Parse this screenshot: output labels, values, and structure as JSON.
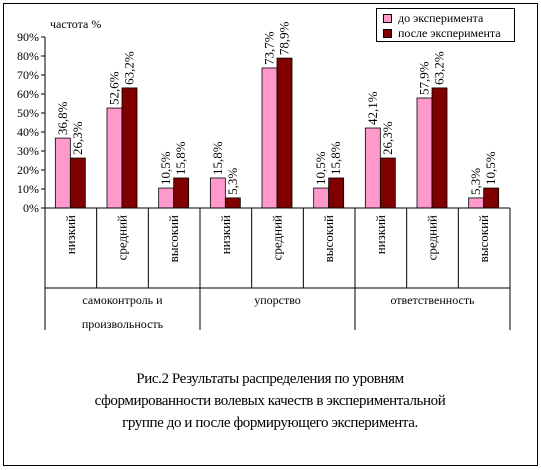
{
  "chart_data": {
    "type": "bar",
    "ylabel": "частота %",
    "ylim": [
      0,
      90
    ],
    "yticks": [
      "0%",
      "10%",
      "20%",
      "30%",
      "40%",
      "50%",
      "60%",
      "70%",
      "80%",
      "90%"
    ],
    "legend_position": "top-right",
    "categories": [
      "низкий",
      "средний",
      "высокий",
      "низкий",
      "средний",
      "высокий",
      "низкий",
      "средний",
      "высокий"
    ],
    "groups": [
      {
        "label_lines": [
          "самоконтроль и",
          "произвольность"
        ]
      },
      {
        "label_lines": [
          "упорство"
        ]
      },
      {
        "label_lines": [
          "ответственность"
        ]
      }
    ],
    "series": [
      {
        "name": "до эксперимента",
        "color": "#ff99cc",
        "values": [
          36.8,
          52.6,
          10.5,
          15.8,
          73.7,
          10.5,
          42.1,
          57.9,
          5.3
        ],
        "labels": [
          "36,8%",
          "52,6%",
          "10,5%",
          "15,8%",
          "73,7%",
          "10,5%",
          "42,1%",
          "57,9%",
          "5,3%"
        ]
      },
      {
        "name": "после эксперимента",
        "color": "#800000",
        "values": [
          26.3,
          63.2,
          15.8,
          5.3,
          78.9,
          15.8,
          26.3,
          63.2,
          10.5
        ],
        "labels": [
          "26,3%",
          "63,2%",
          "15,8%",
          "5,3%",
          "78,9%",
          "15,8%",
          "26,3%",
          "63,2%",
          "10,5%"
        ]
      }
    ]
  },
  "caption": {
    "lines": [
      "Рис.2 Результаты распределения по уровням",
      "сформированности  волевых качеств в экспериментальной",
      "группе до и после формирующего эксперимента."
    ]
  }
}
